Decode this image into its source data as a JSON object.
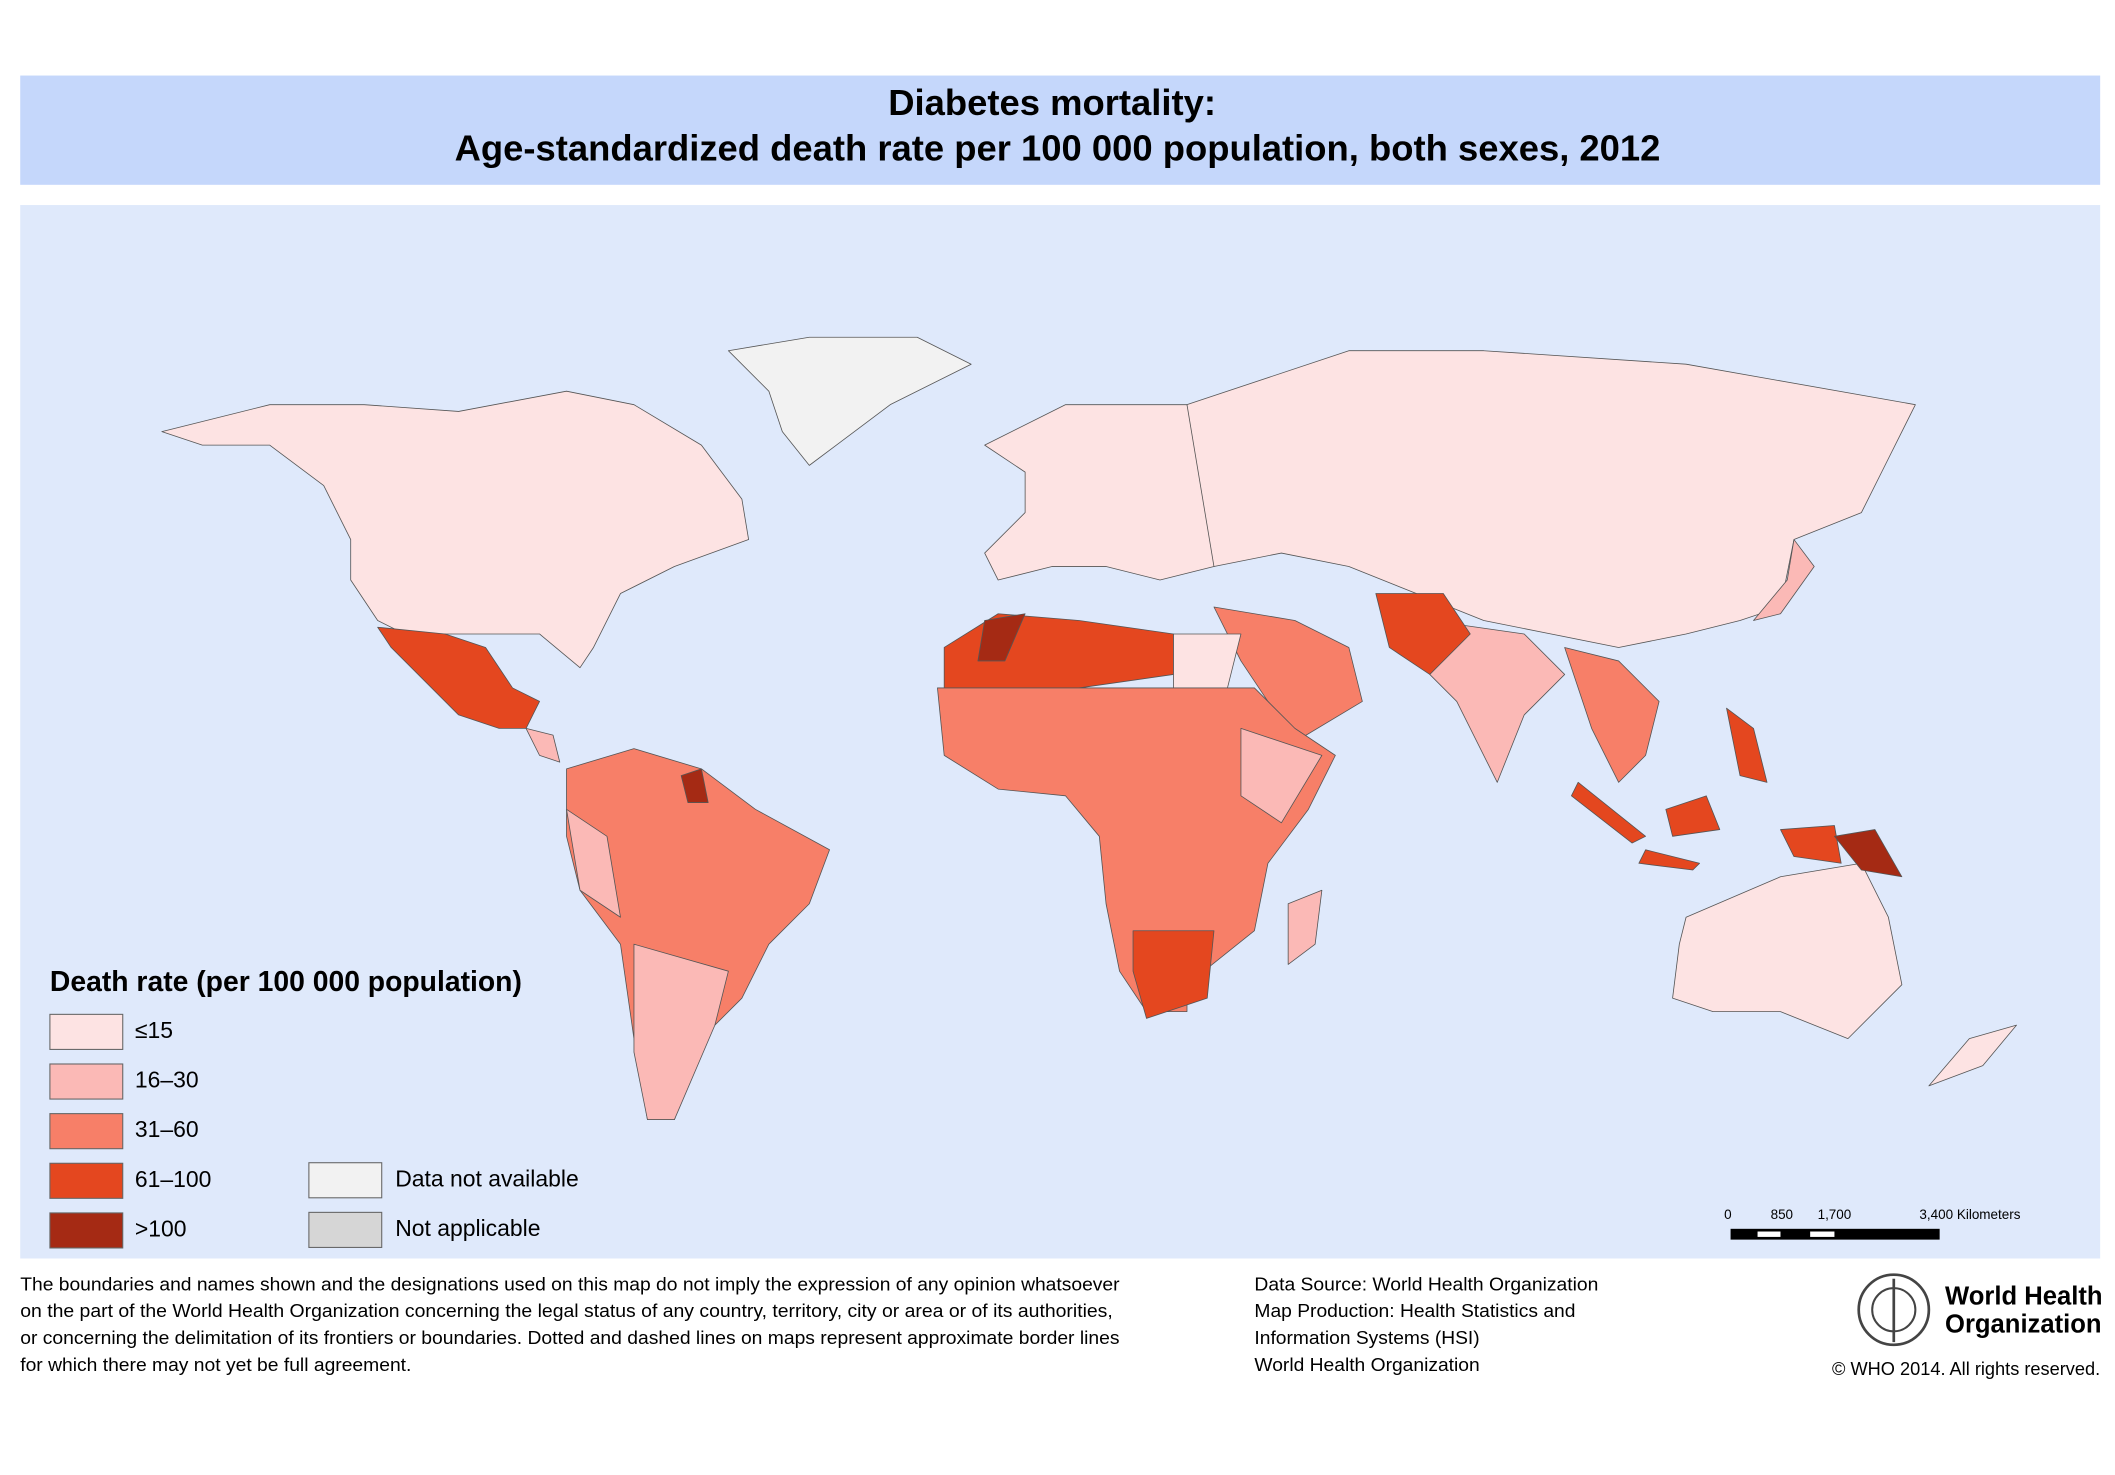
{
  "header": {
    "title": "Diabetes mortality:",
    "subtitle": "Age-standardized death rate per 100 000 population, both sexes, 2012"
  },
  "legend": {
    "title": "Death rate (per 100 000 population)",
    "items": [
      {
        "label": "≤15",
        "color": "#fde3e3"
      },
      {
        "label": "16–30",
        "color": "#fbb9b6"
      },
      {
        "label": "31–60",
        "color": "#f77f68"
      },
      {
        "label": "61–100",
        "color": "#e4471f"
      },
      {
        "label": ">100",
        "color": "#a52a14"
      }
    ],
    "other": [
      {
        "label": "Data not available",
        "color": "#f2f2f2"
      },
      {
        "label": "Not applicable",
        "color": "#d6d6d6"
      }
    ]
  },
  "scale_bar": {
    "labels": [
      "0",
      "850",
      "1,700",
      "3,400 Kilometers"
    ]
  },
  "disclaimer": [
    "The boundaries and names shown and the designations used on this map do not imply the expression of any opinion whatsoever",
    "on the part of the World Health Organization concerning the legal status of any country, territory, city or area or of its authorities,",
    "or concerning the delimitation of its frontiers or boundaries. Dotted and dashed lines on maps represent approximate border lines",
    "for which there may not yet be full agreement."
  ],
  "source": [
    "Data Source: World Health Organization",
    "Map Production: Health Statistics and",
    "Information Systems (HSI)",
    "World Health Organization"
  ],
  "logo": {
    "name": [
      "World Health",
      "Organization"
    ],
    "copyright": "© WHO 2014. All rights reserved."
  }
}
